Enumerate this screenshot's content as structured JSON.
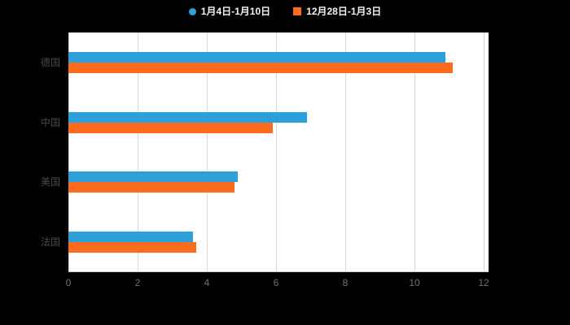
{
  "legend": {
    "items": [
      {
        "label": "1月4日-1月10日",
        "color": "#2D9FD9",
        "marker": "circle"
      },
      {
        "label": "12月28日-1月3日",
        "color": "#FC6B1E",
        "marker": "square"
      }
    ]
  },
  "chart_data": {
    "type": "bar",
    "orientation": "horizontal",
    "title": "",
    "categories": [
      "德国",
      "中国",
      "美国",
      "法国"
    ],
    "series": [
      {
        "name": "1月4日-1月10日",
        "color": "#2D9FD9",
        "values": [
          10.9,
          6.9,
          4.9,
          3.6
        ]
      },
      {
        "name": "12月28日-1月3日",
        "color": "#FC6B1E",
        "values": [
          11.1,
          5.9,
          4.8,
          3.7
        ]
      }
    ],
    "xlim": [
      0,
      12
    ],
    "xticks": [
      0,
      2,
      4,
      6,
      8,
      10,
      12
    ],
    "grid": true,
    "legend_position": "top",
    "page_background": "#000000",
    "plot_background": "#ffffff",
    "gridline_color": "#d8d8d8",
    "axis_line_color": "#cccccc",
    "category_label_color": "#4a4a4a",
    "tick_label_color": "#6e7079",
    "legend_text_color": "#f2f2f2"
  }
}
